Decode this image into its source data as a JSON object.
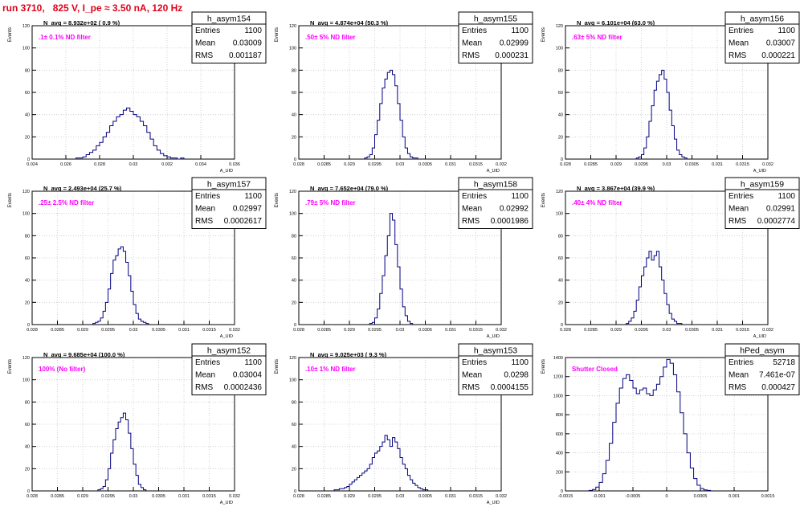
{
  "header": {
    "title": "run 3710,   825 V, I_pe ≈ 3.50 nA, 120 Hz"
  },
  "colors": {
    "line": "#000080",
    "title": "#e0001a",
    "annotation": "#ff00ff",
    "grid": "#c8c8c8"
  },
  "chart_data": [
    {
      "type": "histogram",
      "name": "h_asym154",
      "title": "N_avg = 8.932e+02 ( 0.9 %)",
      "annotation": ".1± 0.1% ND filter",
      "ylabel": "Events",
      "xlabel": "A_UID",
      "stats": [
        [
          "Entries",
          "1100"
        ],
        [
          "Mean",
          "0.03009"
        ],
        [
          "RMS",
          "0.001187"
        ]
      ],
      "xlim": [
        0.024,
        0.036
      ],
      "ylim": [
        0,
        120
      ],
      "xticks": [
        0.024,
        0.026,
        0.028,
        0.03,
        0.032,
        0.034,
        0.036
      ],
      "xticklabels": [
        "0.024",
        "0.026",
        "0.028",
        "0.03",
        "0.032",
        "0.034",
        "0.036"
      ],
      "yticks": [
        0,
        20,
        40,
        60,
        80,
        100,
        120
      ],
      "bins": {
        "start": 0.0266,
        "width": 0.0002,
        "counts": [
          1,
          1,
          2,
          4,
          6,
          8,
          12,
          15,
          20,
          24,
          30,
          34,
          38,
          40,
          44,
          46,
          43,
          40,
          38,
          34,
          30,
          24,
          18,
          12,
          8,
          5,
          3,
          2,
          1,
          1,
          0,
          1
        ]
      }
    },
    {
      "type": "histogram",
      "name": "h_asym155",
      "title": "N_avg = 4.874e+04 (50.3 %)",
      "annotation": ".50± 5% ND filter",
      "ylabel": "Events",
      "xlabel": "A_UID",
      "stats": [
        [
          "Entries",
          "1100"
        ],
        [
          "Mean",
          "0.02999"
        ],
        [
          "RMS",
          "0.000231"
        ]
      ],
      "xlim": [
        0.028,
        0.032
      ],
      "ylim": [
        0,
        120
      ],
      "xticks": [
        0.028,
        0.0285,
        0.029,
        0.0295,
        0.03,
        0.0305,
        0.031,
        0.0315,
        0.032
      ],
      "xticklabels": [
        "0.028",
        "0.0285",
        "0.029",
        "0.0295",
        "0.03",
        "0.0305",
        "0.031",
        "0.0315",
        "0.032"
      ],
      "yticks": [
        0,
        20,
        40,
        60,
        80,
        100,
        120
      ],
      "bins": {
        "start": 0.0293,
        "width": 5e-05,
        "counts": [
          1,
          2,
          4,
          10,
          22,
          35,
          50,
          64,
          72,
          78,
          80,
          76,
          66,
          50,
          35,
          20,
          10,
          5,
          2,
          1,
          1
        ]
      }
    },
    {
      "type": "histogram",
      "name": "h_asym156",
      "title": "N_avg = 6.101e+04 (63.0 %)",
      "annotation": ".63± 5% ND filter",
      "ylabel": "Events",
      "xlabel": "A_UID",
      "stats": [
        [
          "Entries",
          "1100"
        ],
        [
          "Mean",
          "0.03007"
        ],
        [
          "RMS",
          "0.000221"
        ]
      ],
      "xlim": [
        0.028,
        0.032
      ],
      "ylim": [
        0,
        120
      ],
      "xticks": [
        0.028,
        0.0285,
        0.029,
        0.0295,
        0.03,
        0.0305,
        0.031,
        0.0315,
        0.032
      ],
      "xticklabels": [
        "0.028",
        "0.0285",
        "0.029",
        "0.0295",
        "0.03",
        "0.0305",
        "0.031",
        "0.0315",
        "0.032"
      ],
      "yticks": [
        0,
        20,
        40,
        60,
        80,
        100,
        120
      ],
      "bins": {
        "start": 0.0294,
        "width": 5e-05,
        "counts": [
          1,
          2,
          4,
          10,
          20,
          34,
          48,
          62,
          70,
          76,
          80,
          72,
          60,
          44,
          30,
          18,
          8,
          4,
          2,
          1
        ]
      }
    },
    {
      "type": "histogram",
      "name": "h_asym157",
      "title": "N_avg = 2.493e+04 (25.7 %)",
      "annotation": ".25± 2.5% ND filter",
      "ylabel": "Events",
      "xlabel": "A_UID",
      "stats": [
        [
          "Entries",
          "1100"
        ],
        [
          "Mean",
          "0.02997"
        ],
        [
          "RMS",
          "0.0002617"
        ]
      ],
      "xlim": [
        0.028,
        0.032
      ],
      "ylim": [
        0,
        120
      ],
      "xticks": [
        0.028,
        0.0285,
        0.029,
        0.0295,
        0.03,
        0.0305,
        0.031,
        0.0315,
        0.032
      ],
      "xticklabels": [
        "0.028",
        "0.0285",
        "0.029",
        "0.0295",
        "0.03",
        "0.0305",
        "0.031",
        "0.0315",
        "0.032"
      ],
      "yticks": [
        0,
        20,
        40,
        60,
        80,
        100,
        120
      ],
      "bins": {
        "start": 0.0292,
        "width": 5e-05,
        "counts": [
          1,
          2,
          3,
          6,
          12,
          20,
          32,
          46,
          58,
          62,
          68,
          70,
          66,
          56,
          44,
          30,
          18,
          10,
          5,
          3,
          2,
          1
        ]
      }
    },
    {
      "type": "histogram",
      "name": "h_asym158",
      "title": "N_avg = 7.652e+04 (79.0 %)",
      "annotation": ".79± 5% ND filter",
      "ylabel": "Events",
      "xlabel": "A_UID",
      "stats": [
        [
          "Entries",
          "1100"
        ],
        [
          "Mean",
          "0.02992"
        ],
        [
          "RMS",
          "0.0001986"
        ]
      ],
      "xlim": [
        0.028,
        0.032
      ],
      "ylim": [
        0,
        120
      ],
      "xticks": [
        0.028,
        0.0285,
        0.029,
        0.0295,
        0.03,
        0.0305,
        0.031,
        0.0315,
        0.032
      ],
      "xticklabels": [
        "0.028",
        "0.0285",
        "0.029",
        "0.0295",
        "0.03",
        "0.0305",
        "0.031",
        "0.0315",
        "0.032"
      ],
      "yticks": [
        0,
        20,
        40,
        60,
        80,
        100,
        120
      ],
      "bins": {
        "start": 0.0294,
        "width": 5e-05,
        "counts": [
          1,
          2,
          6,
          14,
          28,
          44,
          62,
          80,
          100,
          94,
          72,
          52,
          32,
          16,
          8,
          3,
          1
        ]
      }
    },
    {
      "type": "histogram",
      "name": "h_asym159",
      "title": "N_avg = 3.867e+04 (39.9 %)",
      "annotation": ".40± 4% ND filter",
      "ylabel": "Events",
      "xlabel": "A_UID",
      "stats": [
        [
          "Entries",
          "1100"
        ],
        [
          "Mean",
          "0.02991"
        ],
        [
          "RMS",
          "0.0002774"
        ]
      ],
      "xlim": [
        0.028,
        0.032
      ],
      "ylim": [
        0,
        120
      ],
      "xticks": [
        0.028,
        0.0285,
        0.029,
        0.0295,
        0.03,
        0.0305,
        0.031,
        0.0315,
        0.032
      ],
      "xticklabels": [
        "0.028",
        "0.0285",
        "0.029",
        "0.0295",
        "0.03",
        "0.0305",
        "0.031",
        "0.0315",
        "0.032"
      ],
      "yticks": [
        0,
        20,
        40,
        60,
        80,
        100,
        120
      ],
      "bins": {
        "start": 0.0292,
        "width": 5e-05,
        "counts": [
          1,
          3,
          6,
          12,
          22,
          34,
          44,
          52,
          60,
          66,
          58,
          62,
          66,
          52,
          40,
          28,
          18,
          10,
          5,
          3,
          1,
          1
        ]
      }
    },
    {
      "type": "histogram",
      "name": "h_asym152",
      "title": "N_avg = 9.685e+04 (100.0 %)",
      "annotation": "100% (No filter)",
      "ylabel": "Events",
      "xlabel": "A_UID",
      "stats": [
        [
          "Entries",
          "1100"
        ],
        [
          "Mean",
          "0.03004"
        ],
        [
          "RMS",
          "0.0002436"
        ]
      ],
      "xlim": [
        0.028,
        0.032
      ],
      "ylim": [
        0,
        120
      ],
      "xticks": [
        0.028,
        0.0285,
        0.029,
        0.0295,
        0.03,
        0.0305,
        0.031,
        0.0315,
        0.032
      ],
      "xticklabels": [
        "0.028",
        "0.0285",
        "0.029",
        "0.0295",
        "0.03",
        "0.0305",
        "0.031",
        "0.0315",
        "0.032"
      ],
      "yticks": [
        0,
        20,
        40,
        60,
        80,
        100,
        120
      ],
      "bins": {
        "start": 0.0293,
        "width": 5e-05,
        "counts": [
          1,
          2,
          4,
          10,
          20,
          34,
          46,
          56,
          62,
          66,
          70,
          64,
          52,
          38,
          24,
          14,
          6,
          3,
          1
        ]
      }
    },
    {
      "type": "histogram",
      "name": "h_asym153",
      "title": "N_avg = 9.025e+03 ( 9.3 %)",
      "annotation": ".10± 1% ND filter",
      "ylabel": "Events",
      "xlabel": "A_UID",
      "stats": [
        [
          "Entries",
          "1100"
        ],
        [
          "Mean",
          "0.0298"
        ],
        [
          "RMS",
          "0.0004155"
        ]
      ],
      "xlim": [
        0.028,
        0.032
      ],
      "ylim": [
        0,
        120
      ],
      "xticks": [
        0.028,
        0.0285,
        0.029,
        0.0295,
        0.03,
        0.0305,
        0.031,
        0.0315,
        0.032
      ],
      "xticklabels": [
        "0.028",
        "0.0285",
        "0.029",
        "0.0295",
        "0.03",
        "0.0305",
        "0.031",
        "0.0315",
        "0.032"
      ],
      "yticks": [
        0,
        20,
        40,
        60,
        80,
        100,
        120
      ],
      "bins": {
        "start": 0.0287,
        "width": 5e-05,
        "counts": [
          1,
          1,
          2,
          2,
          3,
          4,
          6,
          8,
          10,
          12,
          14,
          16,
          18,
          20,
          24,
          30,
          34,
          36,
          40,
          44,
          50,
          46,
          40,
          48,
          44,
          38,
          30,
          24,
          20,
          14,
          10,
          7,
          5,
          3,
          2,
          1,
          1
        ]
      }
    },
    {
      "type": "histogram",
      "name": "hPed_asym",
      "title": "",
      "annotation": "Shutter Closed",
      "ylabel": "Events",
      "xlabel": "",
      "stats": [
        [
          "Entries",
          "52718"
        ],
        [
          "Mean",
          "7.461e-07"
        ],
        [
          "RMS",
          "0.000427"
        ]
      ],
      "xlim": [
        -0.0015,
        0.0015
      ],
      "ylim": [
        0,
        1400
      ],
      "xticks": [
        -0.0015,
        -0.001,
        -0.0005,
        0,
        0.0005,
        0.001,
        0.0015
      ],
      "xticklabels": [
        "-0.0015",
        "-0.001",
        "-0.0005",
        "0",
        "0.0005",
        "0.001",
        "0.0015"
      ],
      "yticks": [
        0,
        200,
        400,
        600,
        800,
        1000,
        1200,
        1400
      ],
      "bins": {
        "start": -0.00115,
        "width": 5e-05,
        "counts": [
          5,
          15,
          40,
          90,
          180,
          320,
          500,
          720,
          920,
          1080,
          1180,
          1220,
          1160,
          1080,
          1020,
          1060,
          1080,
          1020,
          1000,
          1060,
          1120,
          1200,
          1300,
          1380,
          1340,
          1220,
          1040,
          820,
          600,
          400,
          240,
          130,
          60,
          25,
          10,
          5
        ]
      }
    }
  ]
}
